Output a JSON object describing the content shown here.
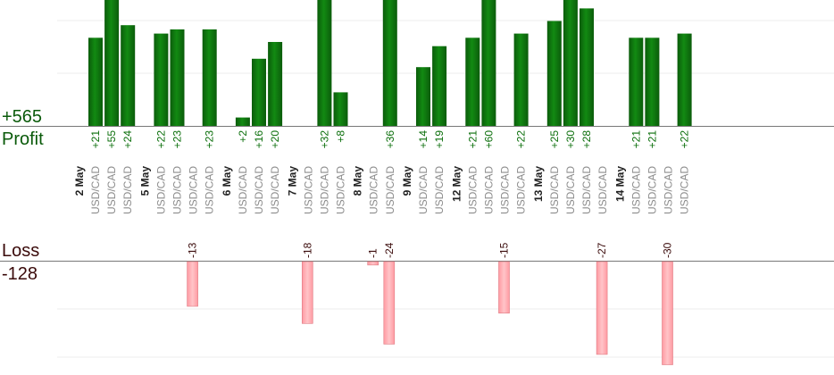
{
  "summary": {
    "profit_total": "+565",
    "profit_label": "Profit",
    "loss_label": "Loss",
    "loss_total": "-128"
  },
  "colors": {
    "profit_bar": "#0a640a",
    "profit_text": "#0a6e0a",
    "loss_bar": "#ffb3b8",
    "loss_bar_edge": "#e07a82",
    "loss_text": "#3a0a0a",
    "date_text": "#222222",
    "instrument_text": "#8c8c8c",
    "gridline": "#ececec",
    "axis": "#777777"
  },
  "chart_data": {
    "type": "bar",
    "profit_total": 565,
    "loss_total": -128,
    "profit_ylim": [
      0,
      24
    ],
    "loss_ylim": [
      -24,
      0
    ],
    "days": [
      {
        "date": "2 May",
        "trades": [
          {
            "instrument": "USD/CAD",
            "profit": 21
          },
          {
            "instrument": "USD/CAD",
            "profit": 55
          },
          {
            "instrument": "USD/CAD",
            "profit": 24
          }
        ]
      },
      {
        "date": "5 May",
        "trades": [
          {
            "instrument": "USD/CAD",
            "profit": 22
          },
          {
            "instrument": "USD/CAD",
            "profit": 23
          },
          {
            "instrument": "USD/CAD",
            "loss": -13
          },
          {
            "instrument": "USD/CAD",
            "profit": 23
          }
        ]
      },
      {
        "date": "6 May",
        "trades": [
          {
            "instrument": "USD/CAD",
            "profit": 2
          },
          {
            "instrument": "USD/CAD",
            "profit": 16
          },
          {
            "instrument": "USD/CAD",
            "profit": 20
          }
        ]
      },
      {
        "date": "7 May",
        "trades": [
          {
            "instrument": "USD/CAD",
            "loss": -18
          },
          {
            "instrument": "USD/CAD",
            "profit": 32
          },
          {
            "instrument": "USD/CAD",
            "profit": 8
          }
        ]
      },
      {
        "date": "8 May",
        "trades": [
          {
            "instrument": "USD/CAD",
            "loss": -1
          },
          {
            "instrument": "USD/CAD",
            "profit": 36,
            "loss": -24
          }
        ]
      },
      {
        "date": "9 May",
        "trades": [
          {
            "instrument": "USD/CAD",
            "profit": 14
          },
          {
            "instrument": "USD/CAD",
            "profit": 19
          }
        ]
      },
      {
        "date": "12 May",
        "trades": [
          {
            "instrument": "USD/CAD",
            "profit": 21
          },
          {
            "instrument": "USD/CAD",
            "profit": 60
          },
          {
            "instrument": "USD/CAD",
            "loss": -15
          },
          {
            "instrument": "USD/CAD",
            "profit": 22
          }
        ]
      },
      {
        "date": "13 May",
        "trades": [
          {
            "instrument": "USD/CAD",
            "profit": 25
          },
          {
            "instrument": "USD/CAD",
            "profit": 30
          },
          {
            "instrument": "USD/CAD",
            "profit": 28
          },
          {
            "instrument": "USD/CAD",
            "loss": -27
          }
        ]
      },
      {
        "date": "14 May",
        "trades": [
          {
            "instrument": "USD/CAD",
            "profit": 21
          },
          {
            "instrument": "USD/CAD",
            "profit": 21
          },
          {
            "instrument": "USD/CAD",
            "loss": -30
          },
          {
            "instrument": "USD/CAD",
            "profit": 22
          }
        ]
      }
    ]
  }
}
